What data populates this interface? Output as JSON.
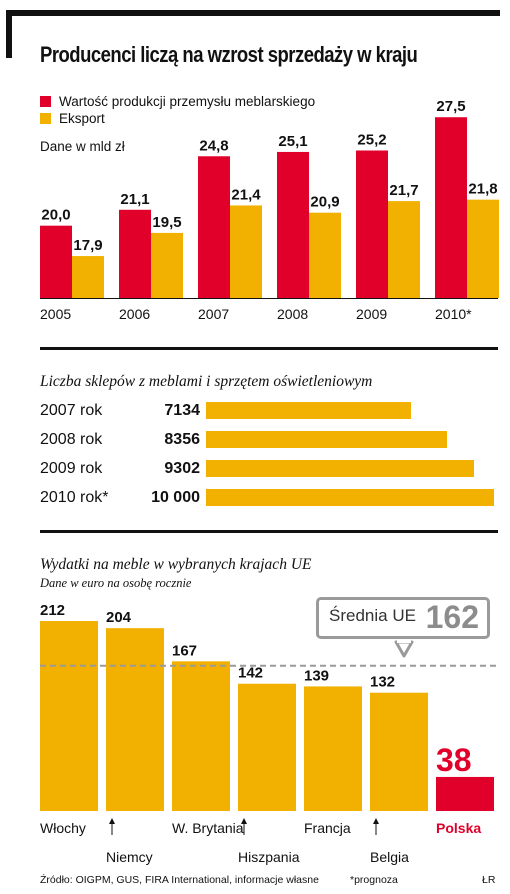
{
  "title": "Producenci liczą na wzrost sprzedaży w kraju",
  "colors": {
    "red": "#E0002A",
    "yellow": "#F2B100",
    "gray": "#9A9A9A",
    "text": "#111111"
  },
  "chart_data": [
    {
      "type": "bar",
      "legend": [
        "Wartość produkcji przemysłu meblarskiego",
        "Eksport"
      ],
      "unit_label": "Dane w mld zł",
      "categories": [
        "2005",
        "2006",
        "2007",
        "2008",
        "2009",
        "2010*"
      ],
      "series": [
        {
          "name": "Wartość produkcji przemysłu meblarskiego",
          "color": "#E0002A",
          "values": [
            20.0,
            21.1,
            24.8,
            25.1,
            25.2,
            27.5
          ],
          "labels": [
            "20,0",
            "21,1",
            "24,8",
            "25,1",
            "25,2",
            "27,5"
          ]
        },
        {
          "name": "Eksport",
          "color": "#F2B100",
          "values": [
            17.9,
            19.5,
            21.4,
            20.9,
            21.7,
            21.8
          ],
          "labels": [
            "17,9",
            "19,5",
            "21,4",
            "20,9",
            "21,7",
            "21,8"
          ]
        }
      ],
      "ylim": [
        15,
        28
      ],
      "grid": false
    },
    {
      "type": "bar",
      "orientation": "horizontal",
      "title": "Liczba sklepów z meblami i sprzętem oświetleniowym",
      "categories": [
        "2007 rok",
        "2008 rok",
        "2009 rok",
        "2010 rok*"
      ],
      "values": [
        7134,
        8356,
        9302,
        10000
      ],
      "labels": [
        "7134",
        "8356",
        "9302",
        "10 000"
      ],
      "xlim": [
        0,
        10000
      ]
    },
    {
      "type": "bar",
      "title": "Wydatki na meble w wybranych krajach UE",
      "subtitle": "Dane w euro na osobę rocznie",
      "categories": [
        "Włochy",
        "Niemcy",
        "W. Brytania",
        "Hiszpania",
        "Francja",
        "Belgia",
        "Polska"
      ],
      "values": [
        212,
        204,
        167,
        142,
        139,
        132,
        38
      ],
      "highlight": "Polska",
      "reference_line": {
        "label": "Średnia UE",
        "value": 162
      },
      "ylim": [
        0,
        215
      ]
    }
  ],
  "footer": {
    "source": "Źródło: OIGPM, GUS, FIRA International, informacje własne",
    "note": "*prognoza",
    "credit": "ŁR"
  }
}
